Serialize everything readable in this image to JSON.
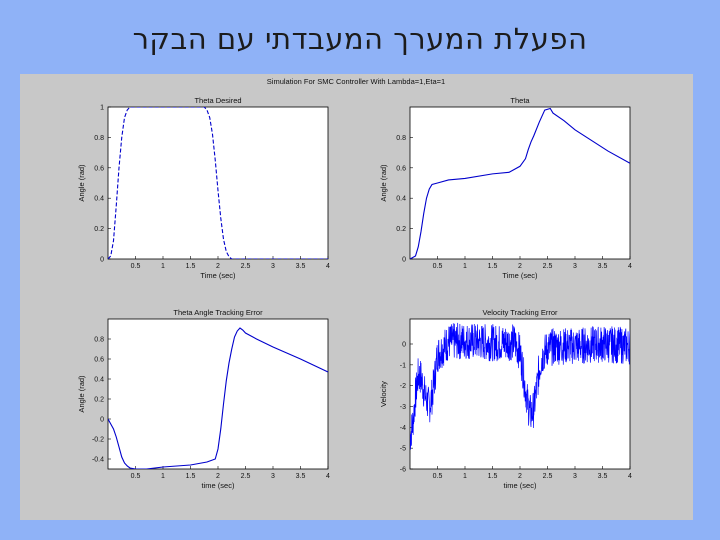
{
  "slide": {
    "title": "הפעלת המערך המעבדתי עם הבקר"
  },
  "figure": {
    "suptitle": "Simulation For SMC Controller With Lambda=1,Eta=1"
  },
  "chart_data": [
    {
      "type": "line",
      "title": "Theta Desired",
      "xlabel": "Time (sec)",
      "ylabel": "Angle (rad)",
      "xlim": [
        0,
        4
      ],
      "ylim": [
        0,
        1
      ],
      "xticks": [
        0.5,
        1,
        1.5,
        2,
        2.5,
        3,
        3.5,
        4
      ],
      "xtick_labels": [
        "0.5",
        "1",
        "1.5",
        "2",
        "2.5",
        "3",
        "3.5",
        "4"
      ],
      "yticks": [
        0,
        0.2,
        0.4,
        0.6,
        0.8,
        1
      ],
      "ytick_labels": [
        "0",
        "0.2",
        "0.4",
        "0.6",
        "0.8",
        "1"
      ],
      "line_color": "#0000cc",
      "line_style": "dashed",
      "series": [
        {
          "x": [
            0,
            0.05,
            0.1,
            0.15,
            0.2,
            0.25,
            0.3,
            0.35,
            0.4,
            0.5,
            1.75,
            1.8,
            1.85,
            1.9,
            1.95,
            2.0,
            2.05,
            2.1,
            2.15,
            2.2,
            2.25,
            2.3,
            4
          ],
          "y": [
            0,
            0.02,
            0.12,
            0.35,
            0.6,
            0.8,
            0.93,
            0.98,
            1.0,
            1.0,
            1.0,
            0.98,
            0.93,
            0.82,
            0.65,
            0.45,
            0.27,
            0.13,
            0.05,
            0.015,
            0.0,
            0.0,
            0.0
          ]
        }
      ]
    },
    {
      "type": "line",
      "title": "Theta",
      "xlabel": "Time (sec)",
      "ylabel": "Angle (rad)",
      "xlim": [
        0,
        4
      ],
      "ylim": [
        0,
        1
      ],
      "xticks": [
        0.5,
        1,
        1.5,
        2,
        2.5,
        3,
        3.5,
        4
      ],
      "xtick_labels": [
        "0.5",
        "1",
        "1.5",
        "2",
        "2.5",
        "3",
        "3.5",
        "4"
      ],
      "yticks": [
        0,
        0.2,
        0.4,
        0.6,
        0.8
      ],
      "ytick_labels": [
        "0",
        "0.2",
        "0.4",
        "0.6",
        "0.8"
      ],
      "line_color": "#0000cc",
      "line_style": "solid",
      "series": [
        {
          "x": [
            0,
            0.1,
            0.15,
            0.2,
            0.25,
            0.3,
            0.35,
            0.4,
            0.5,
            0.7,
            1.0,
            1.5,
            1.8,
            2.0,
            2.1,
            2.15,
            2.2,
            2.25,
            2.35,
            2.45,
            2.55,
            2.6,
            2.8,
            3.0,
            3.3,
            3.6,
            4.0
          ],
          "y": [
            0.0,
            0.02,
            0.08,
            0.18,
            0.3,
            0.4,
            0.46,
            0.49,
            0.5,
            0.52,
            0.53,
            0.56,
            0.57,
            0.61,
            0.66,
            0.72,
            0.77,
            0.81,
            0.9,
            0.98,
            0.99,
            0.96,
            0.91,
            0.85,
            0.78,
            0.71,
            0.63
          ]
        }
      ]
    },
    {
      "type": "line",
      "title": "Theta Angle Tracking Error",
      "xlabel": "time (sec)",
      "ylabel": "Angle (rad)",
      "xlim": [
        0,
        4
      ],
      "ylim": [
        -0.5,
        1.0
      ],
      "xticks": [
        0.5,
        1,
        1.5,
        2,
        2.5,
        3,
        3.5,
        4
      ],
      "xtick_labels": [
        "0.5",
        "1",
        "1.5",
        "2",
        "2.5",
        "3",
        "3.5",
        "4"
      ],
      "yticks": [
        -0.4,
        -0.2,
        0,
        0.2,
        0.4,
        0.6,
        0.8
      ],
      "ytick_labels": [
        "-0.4",
        "-0.2",
        "0",
        "0.2",
        "0.4",
        "0.6",
        "0.8"
      ],
      "line_color": "#0000cc",
      "line_style": "solid",
      "series": [
        {
          "x": [
            0,
            0.05,
            0.1,
            0.15,
            0.2,
            0.25,
            0.3,
            0.35,
            0.4,
            0.5,
            0.7,
            1.0,
            1.5,
            1.8,
            1.95,
            2.0,
            2.05,
            2.1,
            2.15,
            2.2,
            2.25,
            2.3,
            2.35,
            2.4,
            2.45,
            2.5,
            2.7,
            3.0,
            3.5,
            4.0
          ],
          "y": [
            0.0,
            -0.05,
            -0.1,
            -0.18,
            -0.28,
            -0.38,
            -0.44,
            -0.47,
            -0.49,
            -0.5,
            -0.5,
            -0.48,
            -0.46,
            -0.43,
            -0.4,
            -0.3,
            -0.1,
            0.15,
            0.38,
            0.56,
            0.7,
            0.82,
            0.88,
            0.91,
            0.89,
            0.86,
            0.8,
            0.72,
            0.6,
            0.47
          ]
        }
      ]
    },
    {
      "type": "line",
      "title": "Velocity Tracking Error",
      "xlabel": "time (sec)",
      "ylabel": "Velocity",
      "xlim": [
        0,
        4
      ],
      "ylim": [
        -6,
        1.2
      ],
      "xticks": [
        0.5,
        1,
        1.5,
        2,
        2.5,
        3,
        3.5,
        4
      ],
      "xtick_labels": [
        "0.5",
        "1",
        "1.5",
        "2",
        "2.5",
        "3",
        "3.5",
        "4"
      ],
      "yticks": [
        -6,
        -5,
        -4,
        -3,
        -2,
        -1,
        0
      ],
      "ytick_labels": [
        "-6",
        "-5",
        "-4",
        "-3",
        "-2",
        "-1",
        "0"
      ],
      "line_color": "#0000ff",
      "line_style": "solid",
      "noise_amplitude": 0.9,
      "series": [
        {
          "x": [
            0,
            0.05,
            0.1,
            0.15,
            0.2,
            0.25,
            0.3,
            0.35,
            0.4,
            0.45,
            0.5,
            0.7,
            1.0,
            1.3,
            1.6,
            1.9,
            2.0,
            2.05,
            2.1,
            2.15,
            2.2,
            2.25,
            2.3,
            2.35,
            2.4,
            2.5,
            2.7,
            3.0,
            3.5,
            4.0
          ],
          "y": [
            -4.5,
            -3.8,
            -2.5,
            -1.5,
            -1.6,
            -2.2,
            -2.7,
            -3.0,
            -2.5,
            -1.6,
            -0.5,
            0.1,
            0.15,
            0.1,
            0.05,
            0.1,
            -0.4,
            -1.2,
            -2.2,
            -3.0,
            -3.4,
            -3.1,
            -2.2,
            -1.2,
            -0.6,
            -0.2,
            -0.1,
            -0.1,
            0.0,
            -0.1
          ]
        }
      ]
    }
  ]
}
